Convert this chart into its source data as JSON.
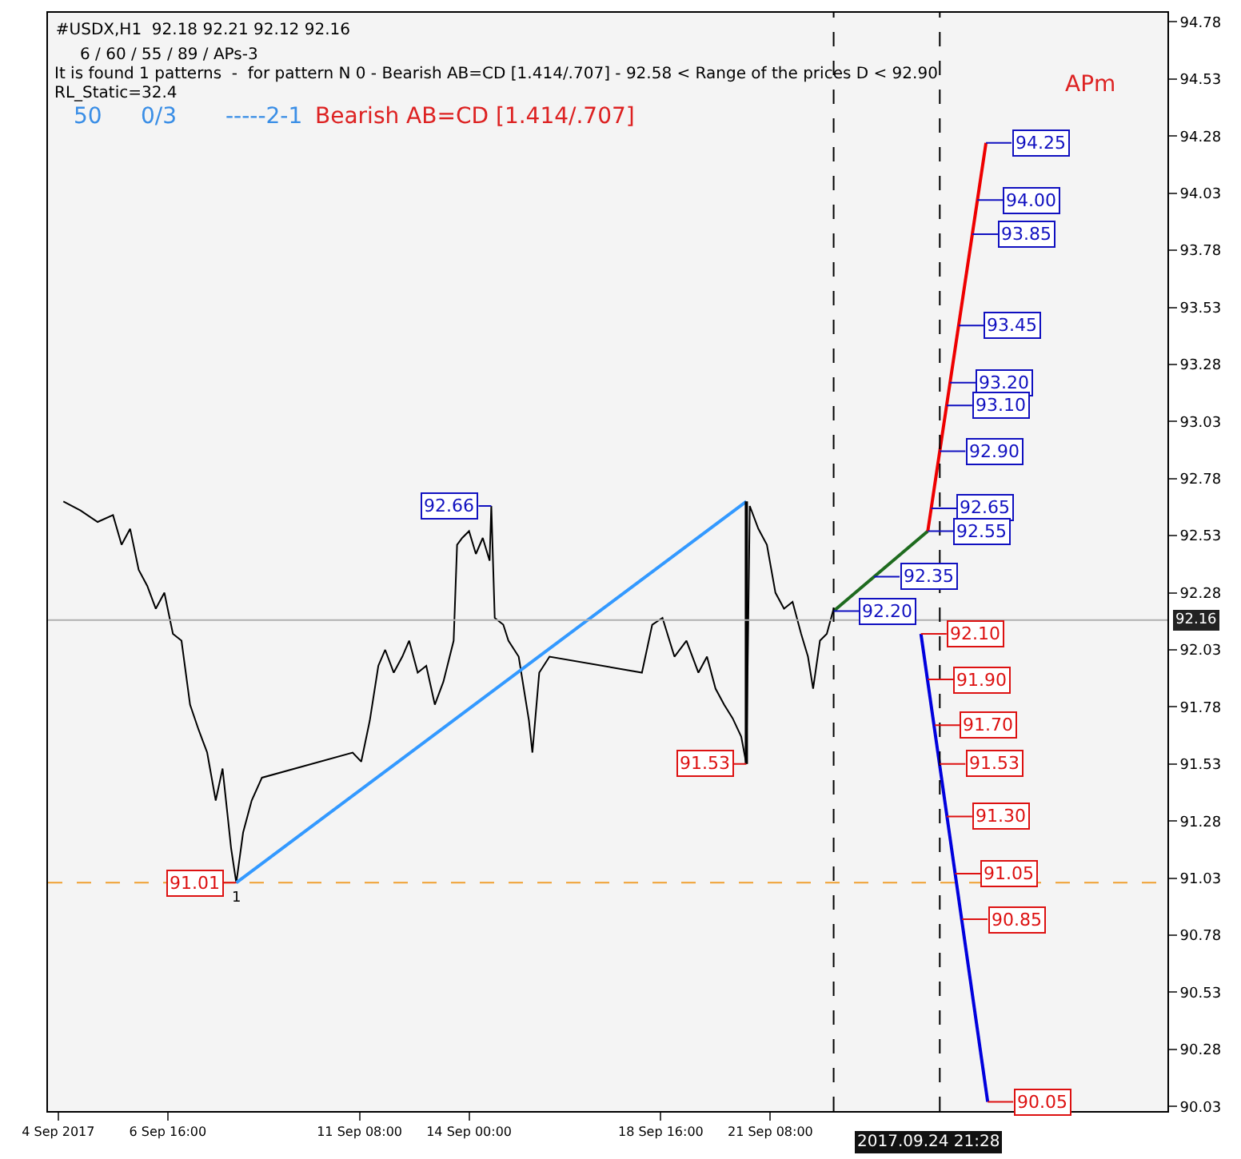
{
  "chart_data": {
    "type": "line",
    "title": "#USDX,H1  92.18 92.21 92.12 92.16",
    "xlim": [
      "2017-09-03T18:00",
      "2017-10-01T00:00"
    ],
    "ylim": [
      90.01,
      94.82
    ],
    "xticks": [
      {
        "value": "2017-09-04T00:00",
        "label": "4 Sep 2017"
      },
      {
        "value": "2017-09-06T16:00",
        "label": "6 Sep 16:00"
      },
      {
        "value": "2017-09-11T08:00",
        "label": "11 Sep 08:00"
      },
      {
        "value": "2017-09-14T00:00",
        "label": "14 Sep 00:00"
      },
      {
        "value": "2017-09-18T16:00",
        "label": "18 Sep 16:00"
      },
      {
        "value": "2017-09-21T08:00",
        "label": "21 Sep 08:00"
      }
    ],
    "yticks": [
      90.03,
      90.28,
      90.53,
      90.78,
      91.03,
      91.28,
      91.53,
      91.78,
      92.03,
      92.28,
      92.53,
      92.78,
      93.03,
      93.28,
      93.53,
      93.78,
      94.03,
      94.28,
      94.53,
      94.78
    ],
    "series": [
      {
        "color": "#000000",
        "x": [
          "2017-09-04T03:00",
          "2017-09-04T13:00",
          "2017-09-04T23:00",
          "2017-09-05T08:00",
          "2017-09-05T13:00",
          "2017-09-05T18:00",
          "2017-09-05T23:00",
          "2017-09-06T04:00",
          "2017-09-06T09:00",
          "2017-09-06T14:00",
          "2017-09-06T19:00",
          "2017-09-07T00:00",
          "2017-09-07T05:00",
          "2017-09-07T10:00",
          "2017-09-07T15:00",
          "2017-09-07T20:00",
          "2017-09-08T00:00",
          "2017-09-08T05:00",
          "2017-09-08T08:00",
          "2017-09-08T12:00",
          "2017-09-08T17:00",
          "2017-09-08T23:00",
          "2017-09-11T04:00",
          "2017-09-11T09:00",
          "2017-09-11T14:00",
          "2017-09-11T19:00",
          "2017-09-11T23:00",
          "2017-09-12T04:00",
          "2017-09-12T09:00",
          "2017-09-12T13:00",
          "2017-09-12T18:00",
          "2017-09-12T23:00",
          "2017-09-13T04:00",
          "2017-09-13T09:00",
          "2017-09-13T15:00",
          "2017-09-13T17:00",
          "2017-09-13T20:00",
          "2017-09-14T00:00",
          "2017-09-14T04:00",
          "2017-09-14T08:00",
          "2017-09-14T12:00",
          "2017-09-14T13:00",
          "2017-09-14T15:00",
          "2017-09-14T20:00",
          "2017-09-14T23:00",
          "2017-09-15T05:00",
          "2017-09-15T11:00",
          "2017-09-15T13:00",
          "2017-09-15T17:00",
          "2017-09-15T23:00",
          "2017-09-18T05:00",
          "2017-09-18T11:00",
          "2017-09-18T17:00",
          "2017-09-19T00:00",
          "2017-09-19T07:00",
          "2017-09-19T14:00",
          "2017-09-19T19:00",
          "2017-09-20T00:00",
          "2017-09-20T05:00",
          "2017-09-20T10:00",
          "2017-09-20T15:00",
          "2017-09-20T18:00",
          "2017-09-20T20:00",
          "2017-09-21T01:00",
          "2017-09-21T06:00",
          "2017-09-21T11:00",
          "2017-09-21T16:00",
          "2017-09-21T21:00",
          "2017-09-22T02:00",
          "2017-09-22T06:00",
          "2017-09-22T09:00",
          "2017-09-22T13:00",
          "2017-09-22T17:00",
          "2017-09-22T21:00",
          "2017-09-22T23:00"
        ],
        "values": [
          92.68,
          92.64,
          92.59,
          92.62,
          92.49,
          92.56,
          92.38,
          92.31,
          92.21,
          92.28,
          92.1,
          92.07,
          91.79,
          91.68,
          91.58,
          91.37,
          91.51,
          91.16,
          91.01,
          91.23,
          91.37,
          91.47,
          91.58,
          91.54,
          91.72,
          91.96,
          92.03,
          91.93,
          92.0,
          92.07,
          91.93,
          91.96,
          91.79,
          91.89,
          92.07,
          92.49,
          92.52,
          92.55,
          92.45,
          92.52,
          92.42,
          92.66,
          92.17,
          92.14,
          92.07,
          92.0,
          91.72,
          91.58,
          91.93,
          92.0,
          91.93,
          92.14,
          92.17,
          92.0,
          92.07,
          91.93,
          92.0,
          91.86,
          91.79,
          91.73,
          91.65,
          91.53,
          92.66,
          92.56,
          92.49,
          92.28,
          92.21,
          92.24,
          92.1,
          92.0,
          91.86,
          92.07,
          92.1,
          92.21,
          92.2
        ]
      },
      {
        "color": "#3399ff",
        "x": [
          "2017-09-08T08:00",
          "2017-09-20T18:00"
        ],
        "values": [
          91.01,
          92.68
        ]
      },
      {
        "color": "#000000",
        "x": [
          "2017-09-20T18:00",
          "2017-09-20T18:00"
        ],
        "values": [
          92.68,
          91.53
        ]
      },
      {
        "color": "#1e6b1e",
        "x": [
          "2017-09-22T21:00",
          "2017-09-25T04:00"
        ],
        "values": [
          92.2,
          92.55
        ]
      },
      {
        "color": "#ee0000",
        "x": [
          "2017-09-25T04:00",
          "2017-09-26T14:00"
        ],
        "values": [
          92.55,
          94.25
        ]
      },
      {
        "color": "#0000dd",
        "x": [
          "2017-09-25T00:00",
          "2017-09-26T15:00"
        ],
        "values": [
          92.1,
          90.05
        ]
      }
    ],
    "ref_lines": [
      {
        "axis": "y",
        "value": 92.16,
        "label": "92.16",
        "color": "#b0b0b0",
        "line_style": "solid"
      },
      {
        "axis": "y",
        "value": 91.01,
        "color": "#f0a030",
        "line_style": "dashed"
      },
      {
        "axis": "x",
        "value": "2017-09-22T21:00",
        "color": "#000000",
        "line_style": "dashed"
      },
      {
        "axis": "x",
        "value": "2017-09-25T11:00",
        "color": "#000000",
        "line_style": "dashed"
      }
    ],
    "annotations": [
      "6 / 60 / 55 / 89 / APs-3",
      "It is found 1 patterns  -  for pattern N 0 - Bearish AB=CD [1.414/.707] - 92.58 < Range of the prices D < 92.90",
      "RL_Static=32.4",
      "50",
      "0/3",
      "-----2-1",
      "Bearish AB=CD [1.414/.707]",
      "APm",
      "2017.09.24 21:28",
      {
        "text": "94.25",
        "x": "2017-09-26T14:00",
        "y": 94.25
      },
      {
        "text": "94.00",
        "x": "2017-09-26T09:00",
        "y": 94.0
      },
      {
        "text": "93.85",
        "x": "2017-09-26T06:00",
        "y": 93.85
      },
      {
        "text": "93.45",
        "x": "2017-09-25T22:00",
        "y": 93.45
      },
      {
        "text": "93.20",
        "x": "2017-09-25T17:00",
        "y": 93.2
      },
      {
        "text": "93.10",
        "x": "2017-09-25T15:00",
        "y": 93.1
      },
      {
        "text": "92.90",
        "x": "2017-09-25T11:00",
        "y": 92.9
      },
      {
        "text": "92.65",
        "x": "2017-09-25T06:00",
        "y": 92.65
      },
      {
        "text": "92.55",
        "x": "2017-09-25T04:00",
        "y": 92.55
      },
      {
        "text": "92.35",
        "x": "2017-09-23T20:34",
        "y": 92.35
      },
      {
        "text": "92.20",
        "x": "2017-09-22T21:00",
        "y": 92.2
      },
      {
        "text": "92.66",
        "x": "2017-09-14T13:00",
        "y": 92.66
      },
      {
        "text": "92.10",
        "x": "2017-09-25T00:00",
        "y": 92.1
      },
      {
        "text": "91.90",
        "x": "2017-09-25T04:00",
        "y": 91.9
      },
      {
        "text": "91.70",
        "x": "2017-09-25T08:00",
        "y": 91.7
      },
      {
        "text": "91.53",
        "x": "2017-09-25T11:00",
        "y": 91.53
      },
      {
        "text": "91.30",
        "x": "2017-09-25T15:00",
        "y": 91.3
      },
      {
        "text": "91.05",
        "x": "2017-09-25T20:00",
        "y": 91.05
      },
      {
        "text": "90.85",
        "x": "2017-09-26T00:00",
        "y": 90.85
      },
      {
        "text": "90.05",
        "x": "2017-09-26T15:00",
        "y": 90.05
      },
      {
        "text": "91.53",
        "x": "2017-09-20T18:00",
        "y": 91.53
      },
      {
        "text": "91.01",
        "x": "2017-09-08T08:00",
        "y": 91.01
      },
      {
        "text": "1",
        "x": "2017-09-08T08:00",
        "y": 91.01
      }
    ]
  }
}
